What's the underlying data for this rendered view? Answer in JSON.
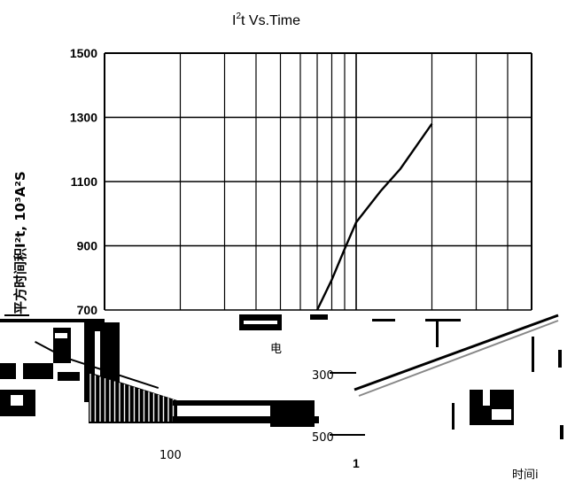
{
  "chart_data": {
    "type": "line",
    "title_main": "I",
    "title_sup": "2",
    "title_rest": "t  Vs.Time",
    "ylabel": "平方时间积I²t, 10³A²S",
    "xlabel": "时间i",
    "y_ticks": [
      1500,
      1300,
      1100,
      900,
      700
    ],
    "x_axis": "log",
    "ylim": [
      700,
      1500
    ],
    "grid": true,
    "series": [
      {
        "x": [
          0.7,
          0.8,
          0.9,
          1.0
        ],
        "y": [
          700,
          794,
          890,
          973
        ]
      },
      {
        "x": [
          1.0,
          1.25,
          1.5,
          1.75,
          2.0
        ],
        "y": [
          973,
          1070,
          1140,
          1215,
          1280
        ]
      }
    ],
    "overlay_labels": {
      "fragment_top": "电",
      "label_300": "300",
      "label_500": "500",
      "label_100": "100",
      "label_1": "1"
    }
  }
}
